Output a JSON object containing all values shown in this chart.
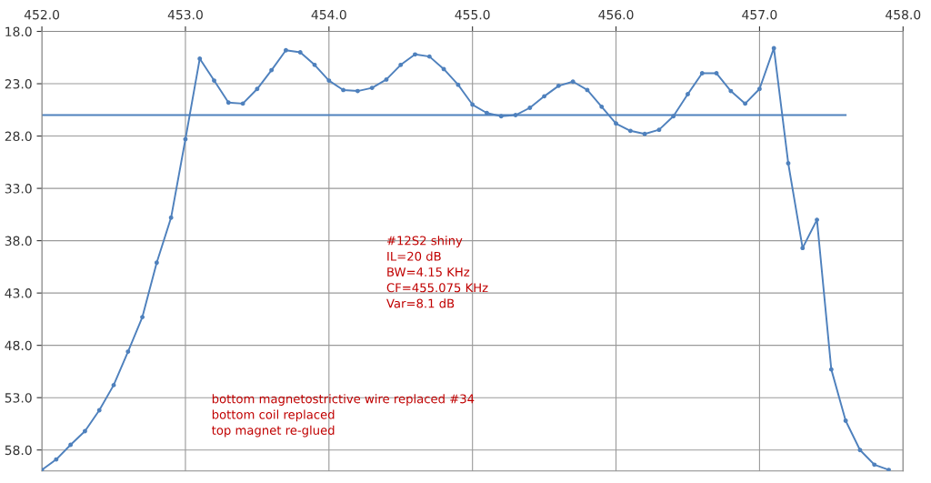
{
  "chart_data": {
    "type": "line",
    "annotations": [
      "#12S2 shiny\nIL=20 dB\nBW=4.15 KHz\nCF=455.075 KHz\nVar=8.1 dB",
      "bottom magnetostrictive wire replaced #34\nbottom coil replaced\ntop magnet re-glued"
    ],
    "series": [
      {
        "color": "#4f81bd",
        "marker": "circle",
        "x": [
          452.0,
          452.1,
          452.2,
          452.3,
          452.4,
          452.5,
          452.6,
          452.7,
          452.8,
          452.9,
          453.0,
          453.1,
          453.2,
          453.3,
          453.4,
          453.5,
          453.6,
          453.7,
          453.8,
          453.9,
          454.0,
          454.1,
          454.2,
          454.3,
          454.4,
          454.5,
          454.6,
          454.7,
          454.8,
          454.9,
          455.0,
          455.1,
          455.2,
          455.3,
          455.4,
          455.5,
          455.6,
          455.7,
          455.8,
          455.9,
          456.0,
          456.1,
          456.2,
          456.3,
          456.4,
          456.5,
          456.6,
          456.7,
          456.8,
          456.9,
          457.0,
          457.1,
          457.2,
          457.3,
          457.4,
          457.5,
          457.6,
          457.7,
          457.8,
          457.9
        ],
        "values": [
          59.9,
          58.9,
          57.5,
          56.2,
          54.2,
          51.8,
          48.6,
          45.3,
          40.1,
          35.8,
          28.3,
          20.6,
          22.7,
          24.8,
          24.9,
          23.5,
          21.7,
          19.8,
          20.0,
          21.2,
          22.7,
          23.6,
          23.7,
          23.4,
          22.6,
          21.2,
          20.2,
          20.4,
          21.6,
          23.1,
          25.0,
          25.8,
          26.1,
          26.0,
          25.3,
          24.2,
          23.2,
          22.8,
          23.6,
          25.2,
          26.8,
          27.5,
          27.8,
          27.4,
          26.1,
          24.0,
          22.0,
          22.0,
          23.7,
          24.9,
          23.5,
          19.6,
          30.6,
          38.7,
          36.0,
          50.3,
          55.2,
          58.0,
          59.4,
          59.9
        ]
      },
      {
        "color": "#4f81bd",
        "marker": "none",
        "x": [
          452.0,
          457.6
        ],
        "values": [
          26.0,
          26.0
        ]
      }
    ],
    "xlim": [
      452.0,
      458.0
    ],
    "xticks": [
      {
        "value": 452,
        "label": "452.0"
      },
      {
        "value": 453,
        "label": "453.0"
      },
      {
        "value": 454,
        "label": "454.0"
      },
      {
        "value": 455,
        "label": "455.0"
      },
      {
        "value": 456,
        "label": "456.0"
      },
      {
        "value": 457,
        "label": "457.0"
      },
      {
        "value": 458,
        "label": "458.0"
      }
    ],
    "ylim": [
      60.0,
      18.0
    ],
    "yticks": [
      {
        "value": 18,
        "label": "18.0"
      },
      {
        "value": 23,
        "label": "23.0"
      },
      {
        "value": 28,
        "label": "28.0"
      },
      {
        "value": 33,
        "label": "33.0"
      },
      {
        "value": 38,
        "label": "38.0"
      },
      {
        "value": 43,
        "label": "43.0"
      },
      {
        "value": 48,
        "label": "48.0"
      },
      {
        "value": 53,
        "label": "53.0"
      },
      {
        "value": 58,
        "label": "58.0"
      }
    ],
    "grid": true
  }
}
